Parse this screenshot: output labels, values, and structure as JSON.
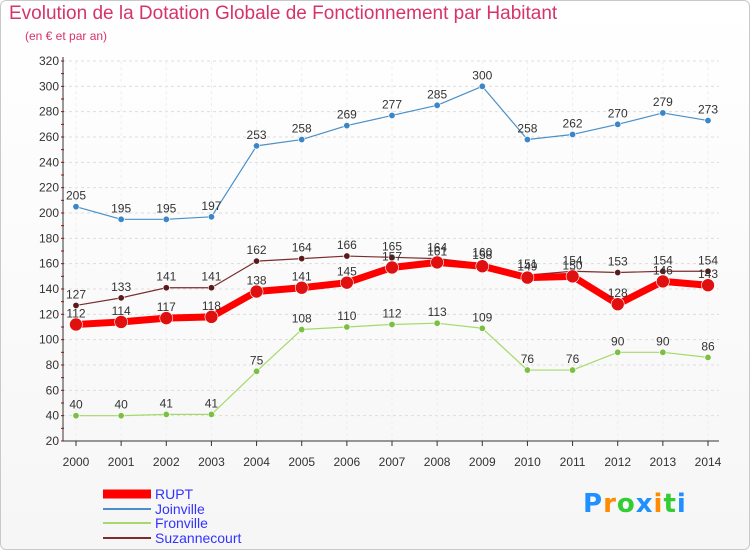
{
  "header": {
    "title": "Evolution de la Dotation Globale de Fonctionnement par Habitant",
    "subtitle": "(en € et par an)"
  },
  "logo": {
    "text": "Proxiti",
    "colors": [
      "#1e90ff",
      "#ff8c00",
      "#32cd32",
      "#1e90ff",
      "#ff8c00",
      "#32cd32",
      "#1e90ff"
    ]
  },
  "colors": {
    "title": "#d6336c",
    "legend_text": "#3333ff",
    "grid": "#dddddd",
    "axis": "#333333"
  },
  "chart_data": {
    "type": "line",
    "title": "Evolution de la Dotation Globale de Fonctionnement par Habitant",
    "subtitle": "(en € et par an)",
    "xlabel": "",
    "ylabel": "",
    "x": [
      2000,
      2001,
      2002,
      2003,
      2004,
      2005,
      2006,
      2007,
      2008,
      2009,
      2010,
      2011,
      2012,
      2013,
      2014
    ],
    "ylim": [
      20,
      320
    ],
    "yticks": [
      20,
      40,
      60,
      80,
      100,
      120,
      140,
      160,
      180,
      200,
      220,
      240,
      260,
      280,
      300,
      320
    ],
    "grid": true,
    "legend_position": "bottom-left",
    "series": [
      {
        "name": "Joinville",
        "color": "#4a90c8",
        "point_color": "#3a86c8",
        "values": [
          205,
          195,
          195,
          197,
          253,
          258,
          269,
          277,
          285,
          300,
          258,
          262,
          270,
          279,
          273
        ]
      },
      {
        "name": "Fronville",
        "color": "#a6d96a",
        "point_color": "#7bc043",
        "values": [
          40,
          40,
          41,
          41,
          75,
          108,
          110,
          112,
          113,
          109,
          76,
          76,
          90,
          90,
          86
        ]
      },
      {
        "name": "Suzannecourt",
        "color": "#7b2c2c",
        "point_color": "#5a1a1a",
        "values": [
          127,
          133,
          141,
          141,
          162,
          164,
          166,
          165,
          164,
          160,
          151,
          154,
          153,
          154,
          154
        ]
      },
      {
        "name": "RUPT",
        "color": "#ff0000",
        "point_color": "#e01010",
        "values": [
          112,
          114,
          117,
          118,
          138,
          141,
          145,
          157,
          161,
          158,
          149,
          150,
          128,
          146,
          143
        ]
      }
    ],
    "legend_order": [
      "RUPT",
      "Joinville",
      "Fronville",
      "Suzannecourt"
    ],
    "value_label_overrides": {
      "Suzannecourt": [
        "127",
        "133",
        "141",
        "141",
        "162",
        "164",
        "166",
        "165",
        "164",
        "160",
        "151",
        "154",
        "153",
        "154",
        "154"
      ],
      "RUPT": [
        "112",
        "114",
        "117",
        "118",
        "138",
        "141",
        "145",
        "157",
        "161",
        "158",
        "149",
        "150",
        "128",
        "146",
        "143"
      ]
    }
  }
}
